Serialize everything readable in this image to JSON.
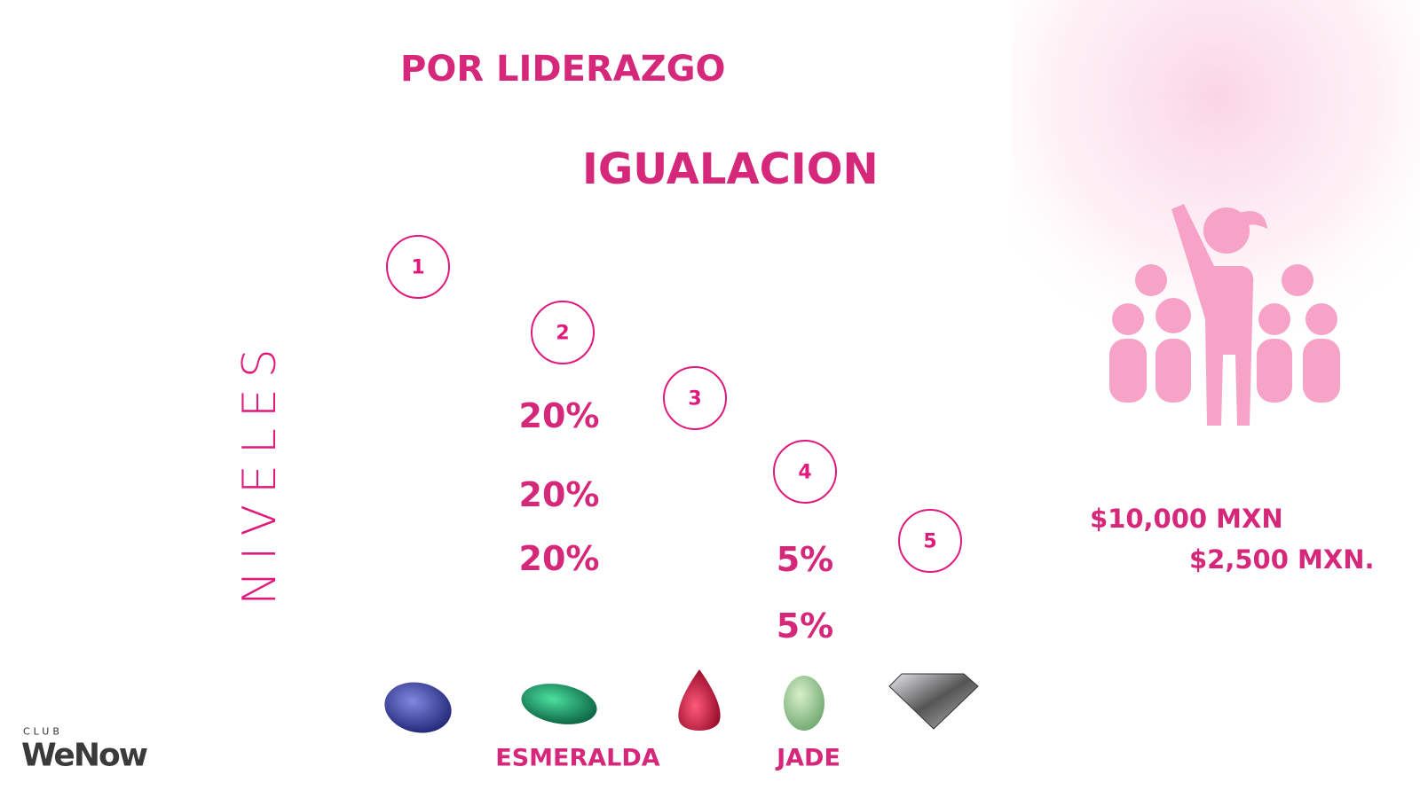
{
  "header": {
    "title": "POR LIDERAZGO",
    "subtitle": "IGUALACION"
  },
  "side_label": "NIVELES",
  "levels": [
    "1",
    "2",
    "3",
    "4",
    "5"
  ],
  "percentages": {
    "esmeralda": [
      "20%",
      "20%",
      "20%"
    ],
    "jade": [
      "5%",
      "5%"
    ]
  },
  "gems": {
    "labels": [
      "ESMERALDA",
      "JADE"
    ]
  },
  "amounts": [
    "$10,000 MXN",
    "$2,500 MXN."
  ],
  "logo": {
    "club": "CLUB",
    "brand": "WeNow"
  }
}
